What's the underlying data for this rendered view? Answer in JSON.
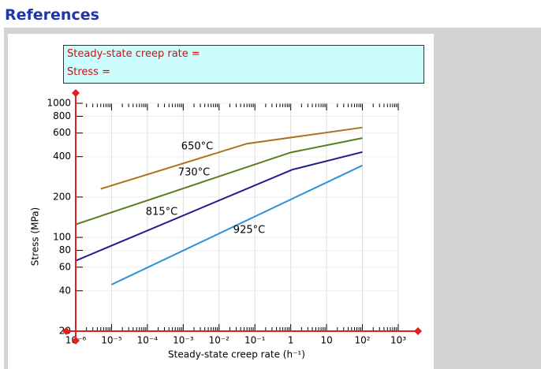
{
  "header": {
    "title": "References"
  },
  "input_panel": {
    "fields": [
      "Steady-state creep rate =",
      "Stress ="
    ]
  },
  "chart_data": {
    "type": "line",
    "xlabel": "Steady-state creep rate (h⁻¹)",
    "ylabel": "Stress (MPa)",
    "xscale": "log",
    "yscale": "log",
    "xlim": [
      1e-06,
      1000
    ],
    "ylim": [
      20,
      1000
    ],
    "xticks": [
      {
        "value": 1e-06,
        "label": "10⁻⁶"
      },
      {
        "value": 1e-05,
        "label": "10⁻⁵"
      },
      {
        "value": 0.0001,
        "label": "10⁻⁴"
      },
      {
        "value": 0.001,
        "label": "10⁻³"
      },
      {
        "value": 0.01,
        "label": "10⁻²"
      },
      {
        "value": 0.1,
        "label": "10⁻¹"
      },
      1,
      10,
      {
        "value": 100,
        "label": "10²"
      },
      {
        "value": 1000,
        "label": "10³"
      }
    ],
    "yticks": [
      20,
      40,
      60,
      80,
      100,
      200,
      400,
      600,
      800,
      1000
    ],
    "grid": true,
    "series": [
      {
        "name": "650°C",
        "color": "#a8731b",
        "x": [
          5e-06,
          0.06,
          100
        ],
        "values": [
          230,
          500,
          660
        ]
      },
      {
        "name": "730°C",
        "color": "#55801e",
        "x": [
          1e-06,
          1,
          100
        ],
        "values": [
          125,
          430,
          550
        ]
      },
      {
        "name": "815°C",
        "color": "#1f1f8c",
        "x": [
          1e-06,
          1.1,
          100
        ],
        "values": [
          67,
          320,
          433
        ]
      },
      {
        "name": "925°C",
        "color": "#2f93d8",
        "x": [
          1e-05,
          100
        ],
        "values": [
          44.5,
          344
        ]
      }
    ]
  }
}
